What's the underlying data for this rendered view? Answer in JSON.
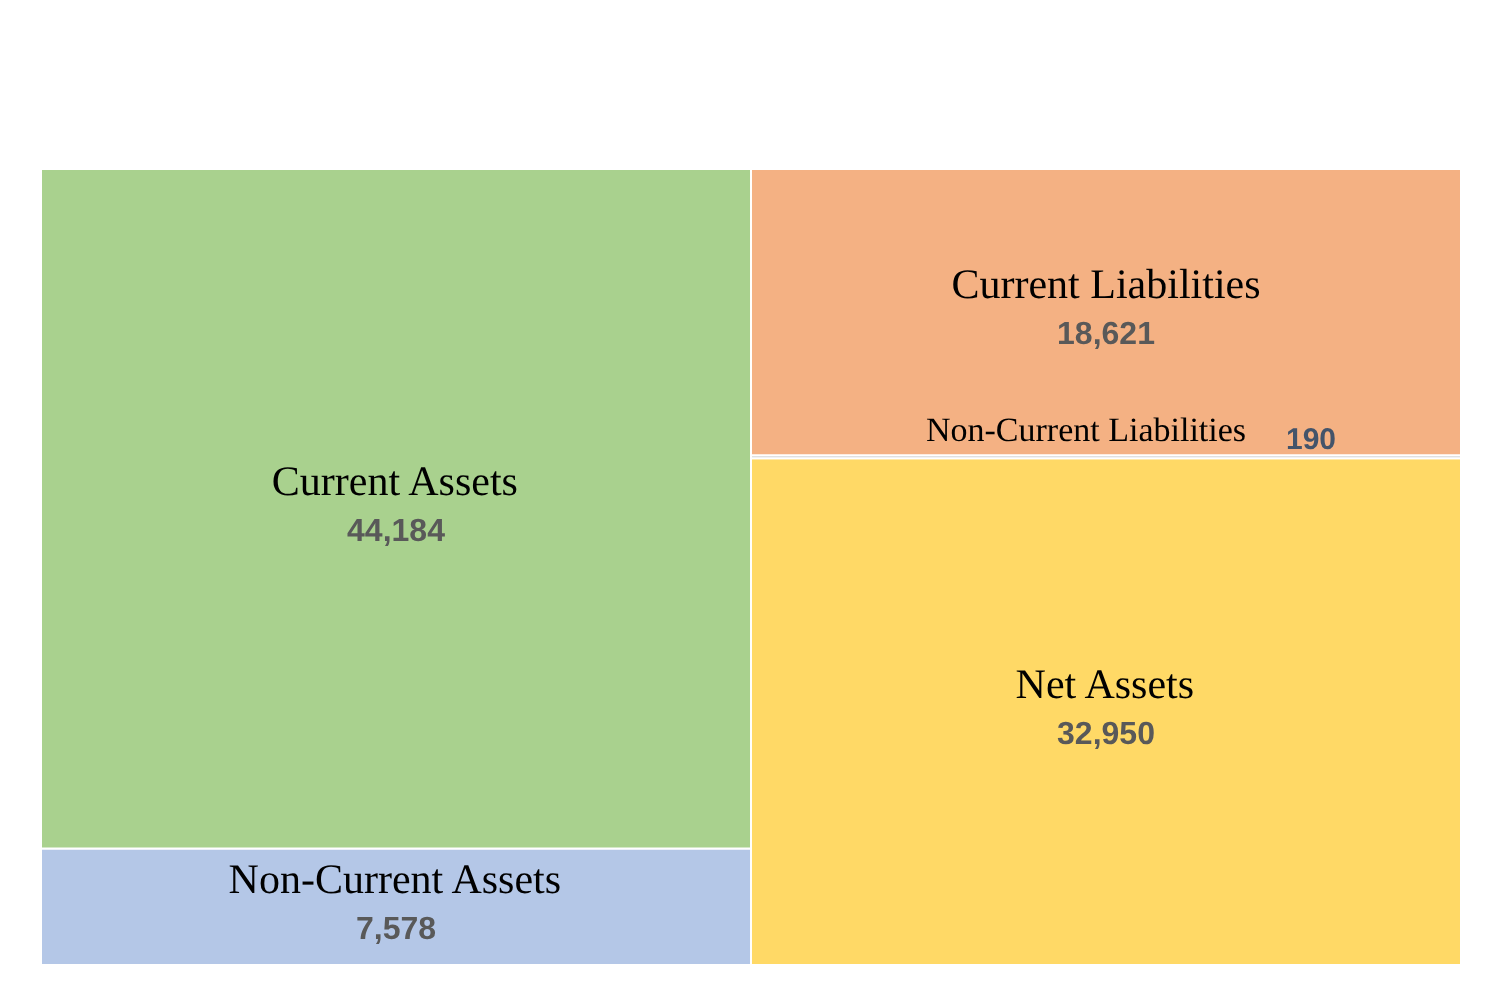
{
  "chart_data": {
    "type": "bar",
    "stacked": true,
    "categories": [
      null,
      null
    ],
    "series": [
      {
        "name": "Non-Current Assets",
        "color": "#b4c7e7",
        "values": [
          7578,
          null
        ],
        "value_labels": [
          "7,578",
          null
        ]
      },
      {
        "name": "Current Assets",
        "color": "#a9d18e",
        "values": [
          44184,
          null
        ],
        "value_labels": [
          "44,184",
          null
        ]
      },
      {
        "name": "Net Assets",
        "color": "#ffd966",
        "values": [
          null,
          32950
        ],
        "value_labels": [
          null,
          "32,950"
        ]
      },
      {
        "name": "Non-Current Liabilities",
        "color": "#c9c9c9",
        "values": [
          null,
          190
        ],
        "value_labels": [
          null,
          "190"
        ]
      },
      {
        "name": "Current Liabilities",
        "color": "#f4b183",
        "values": [
          null,
          18621
        ],
        "value_labels": [
          null,
          "18,621"
        ]
      }
    ]
  }
}
